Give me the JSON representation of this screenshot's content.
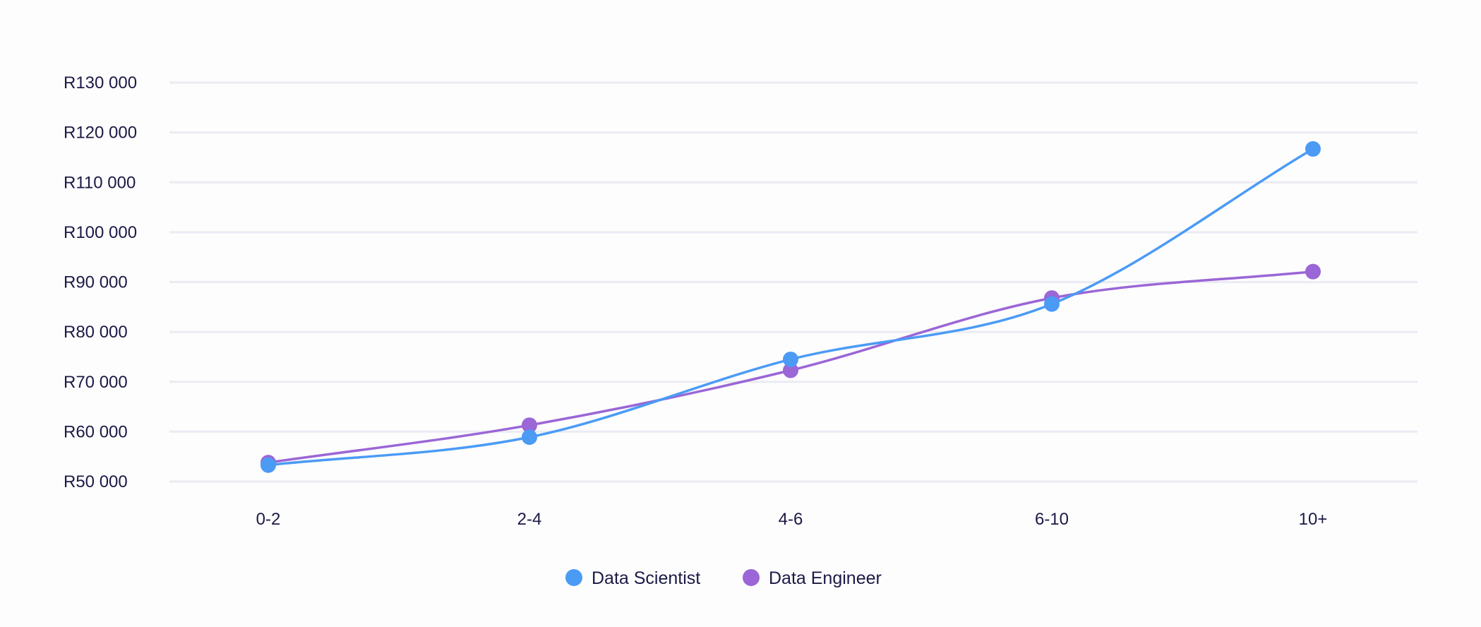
{
  "chart_data": {
    "type": "line",
    "categories": [
      "0-2",
      "2-4",
      "4-6",
      "6-10",
      "10+"
    ],
    "series": [
      {
        "name": "Data Scientist",
        "color": "#4b9bf5",
        "values": [
          53300,
          58900,
          74500,
          85600,
          116700
        ]
      },
      {
        "name": "Data Engineer",
        "color": "#9b66d6",
        "values": [
          53800,
          61300,
          72300,
          86800,
          92100
        ]
      }
    ],
    "yticks": [
      50000,
      60000,
      70000,
      80000,
      90000,
      100000,
      110000,
      120000,
      130000
    ],
    "ytick_labels": [
      "R50 000",
      "R60 000",
      "R70 000",
      "R80 000",
      "R90 000",
      "R100 000",
      "R110 000",
      "R120 000",
      "R130 000"
    ],
    "ylim": [
      50000,
      130000
    ],
    "title": "",
    "xlabel": "",
    "ylabel": "",
    "grid": true,
    "gridline_color": "#ebebf3",
    "text_color": "#1b1a46",
    "legend_position": "bottom-center",
    "smooth": true
  }
}
